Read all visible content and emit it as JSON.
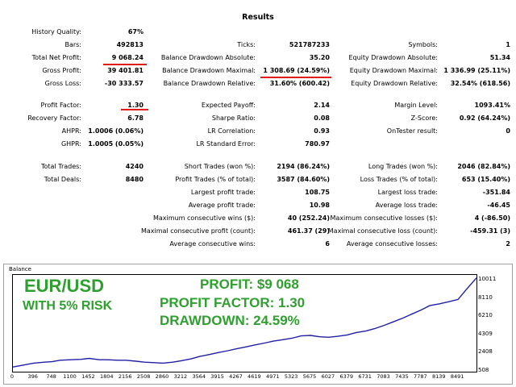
{
  "report": {
    "title": "Results",
    "col1": [
      {
        "label": "History Quality:",
        "value": "67%"
      },
      {
        "label": "Bars:",
        "value": "492813"
      },
      {
        "label": "Total Net Profit:",
        "value": "9 068.24"
      },
      {
        "label": "Gross Profit:",
        "value": "39 401.81"
      },
      {
        "label": "Gross Loss:",
        "value": "-30 333.57"
      },
      {
        "label": "Profit Factor:",
        "value": "1.30"
      },
      {
        "label": "Recovery Factor:",
        "value": "6.78"
      },
      {
        "label": "AHPR:",
        "value": "1.0006 (0.06%)"
      },
      {
        "label": "GHPR:",
        "value": "1.0005 (0.05%)"
      },
      {
        "label": "Total Trades:",
        "value": "4240"
      },
      {
        "label": "Total Deals:",
        "value": "8480"
      }
    ],
    "col2": [
      {
        "label": "Ticks:",
        "value": "521787233"
      },
      {
        "label": "Balance Drawdown Absolute:",
        "value": "35.20"
      },
      {
        "label": "Balance Drawdown Maximal:",
        "value": "1 308.69 (24.59%)"
      },
      {
        "label": "Balance Drawdown Relative:",
        "value": "31.60% (600.42)"
      },
      {
        "label": "Expected Payoff:",
        "value": "2.14"
      },
      {
        "label": "Sharpe Ratio:",
        "value": "0.08"
      },
      {
        "label": "LR Correlation:",
        "value": "0.93"
      },
      {
        "label": "LR Standard Error:",
        "value": "780.97"
      },
      {
        "label": "Short Trades (won %):",
        "value": "2194 (86.24%)"
      },
      {
        "label": "Profit Trades (% of total):",
        "value": "3587 (84.60%)"
      },
      {
        "label": "Largest profit trade:",
        "value": "108.75"
      },
      {
        "label": "Average profit trade:",
        "value": "10.98"
      },
      {
        "label": "Maximum consecutive wins ($):",
        "value": "40 (252.24)"
      },
      {
        "label": "Maximal consecutive profit (count):",
        "value": "461.37 (29)"
      },
      {
        "label": "Average consecutive wins:",
        "value": "6"
      }
    ],
    "col3": [
      {
        "label": "Symbols:",
        "value": "1"
      },
      {
        "label": "Equity Drawdown Absolute:",
        "value": "51.34"
      },
      {
        "label": "Equity Drawdown Maximal:",
        "value": "1 336.99 (25.11%)"
      },
      {
        "label": "Equity Drawdown Relative:",
        "value": "32.54% (618.56)"
      },
      {
        "label": "Margin Level:",
        "value": "1093.41%"
      },
      {
        "label": "Z-Score:",
        "value": "0.92 (64.24%)"
      },
      {
        "label": "OnTester result:",
        "value": "0"
      },
      {
        "label": "Long Trades (won %):",
        "value": "2046 (82.84%)"
      },
      {
        "label": "Loss Trades (% of total):",
        "value": "653 (15.40%)"
      },
      {
        "label": "Largest loss trade:",
        "value": "-351.84"
      },
      {
        "label": "Average loss trade:",
        "value": "-46.45"
      },
      {
        "label": "Maximum consecutive losses ($):",
        "value": "4 (-86.50)"
      },
      {
        "label": "Maximal consecutive loss (count):",
        "value": "-459.31 (3)"
      },
      {
        "label": "Average consecutive losses:",
        "value": "2"
      }
    ]
  },
  "overlay": {
    "pair": "EUR/USD",
    "risk": "WITH 5% RISK",
    "profit": "PROFIT: $9 068",
    "profit_factor": "PROFIT FACTOR: 1.30",
    "drawdown": "DRAWDOWN: 24.59%"
  },
  "colors": {
    "line": "#1f1fa8",
    "highlight": "#e31b1b",
    "overlay_text": "#2fa02f"
  },
  "chart_data": {
    "type": "line",
    "title": "Balance",
    "xlabel": "",
    "ylabel": "",
    "xlim": [
      0,
      8843
    ],
    "ylim": [
      508,
      10611
    ],
    "x_ticks": [
      "0",
      "396",
      "748",
      "1100",
      "1452",
      "1804",
      "2156",
      "2508",
      "2860",
      "3212",
      "3564",
      "3915",
      "4267",
      "4619",
      "4971",
      "5323",
      "5675",
      "6027",
      "6379",
      "6731",
      "7083",
      "7435",
      "7787",
      "8139",
      "8491"
    ],
    "y_ticks": [
      "10011",
      "8110",
      "6210",
      "4309",
      "2408",
      "508"
    ],
    "series": [
      {
        "name": "Balance",
        "x": [
          0,
          200,
          396,
          600,
          748,
          900,
          1100,
          1300,
          1452,
          1650,
          1804,
          2000,
          2156,
          2350,
          2508,
          2700,
          2860,
          3050,
          3212,
          3400,
          3564,
          3750,
          3915,
          4100,
          4267,
          4450,
          4619,
          4800,
          4971,
          5150,
          5323,
          5500,
          5675,
          5850,
          6027,
          6200,
          6379,
          6550,
          6731,
          6900,
          7083,
          7250,
          7435,
          7600,
          7787,
          7950,
          8139,
          8300,
          8491,
          8650,
          8843
        ],
        "y": [
          1000,
          1200,
          1400,
          1500,
          1550,
          1700,
          1750,
          1800,
          1900,
          1750,
          1750,
          1700,
          1700,
          1600,
          1500,
          1450,
          1400,
          1500,
          1650,
          1850,
          2100,
          2300,
          2500,
          2700,
          2900,
          3100,
          3300,
          3500,
          3700,
          3850,
          4000,
          4250,
          4300,
          4150,
          4100,
          4200,
          4350,
          4600,
          4750,
          5000,
          5350,
          5700,
          6100,
          6500,
          6950,
          7400,
          7600,
          7800,
          8050,
          9100,
          10300
        ]
      }
    ]
  }
}
